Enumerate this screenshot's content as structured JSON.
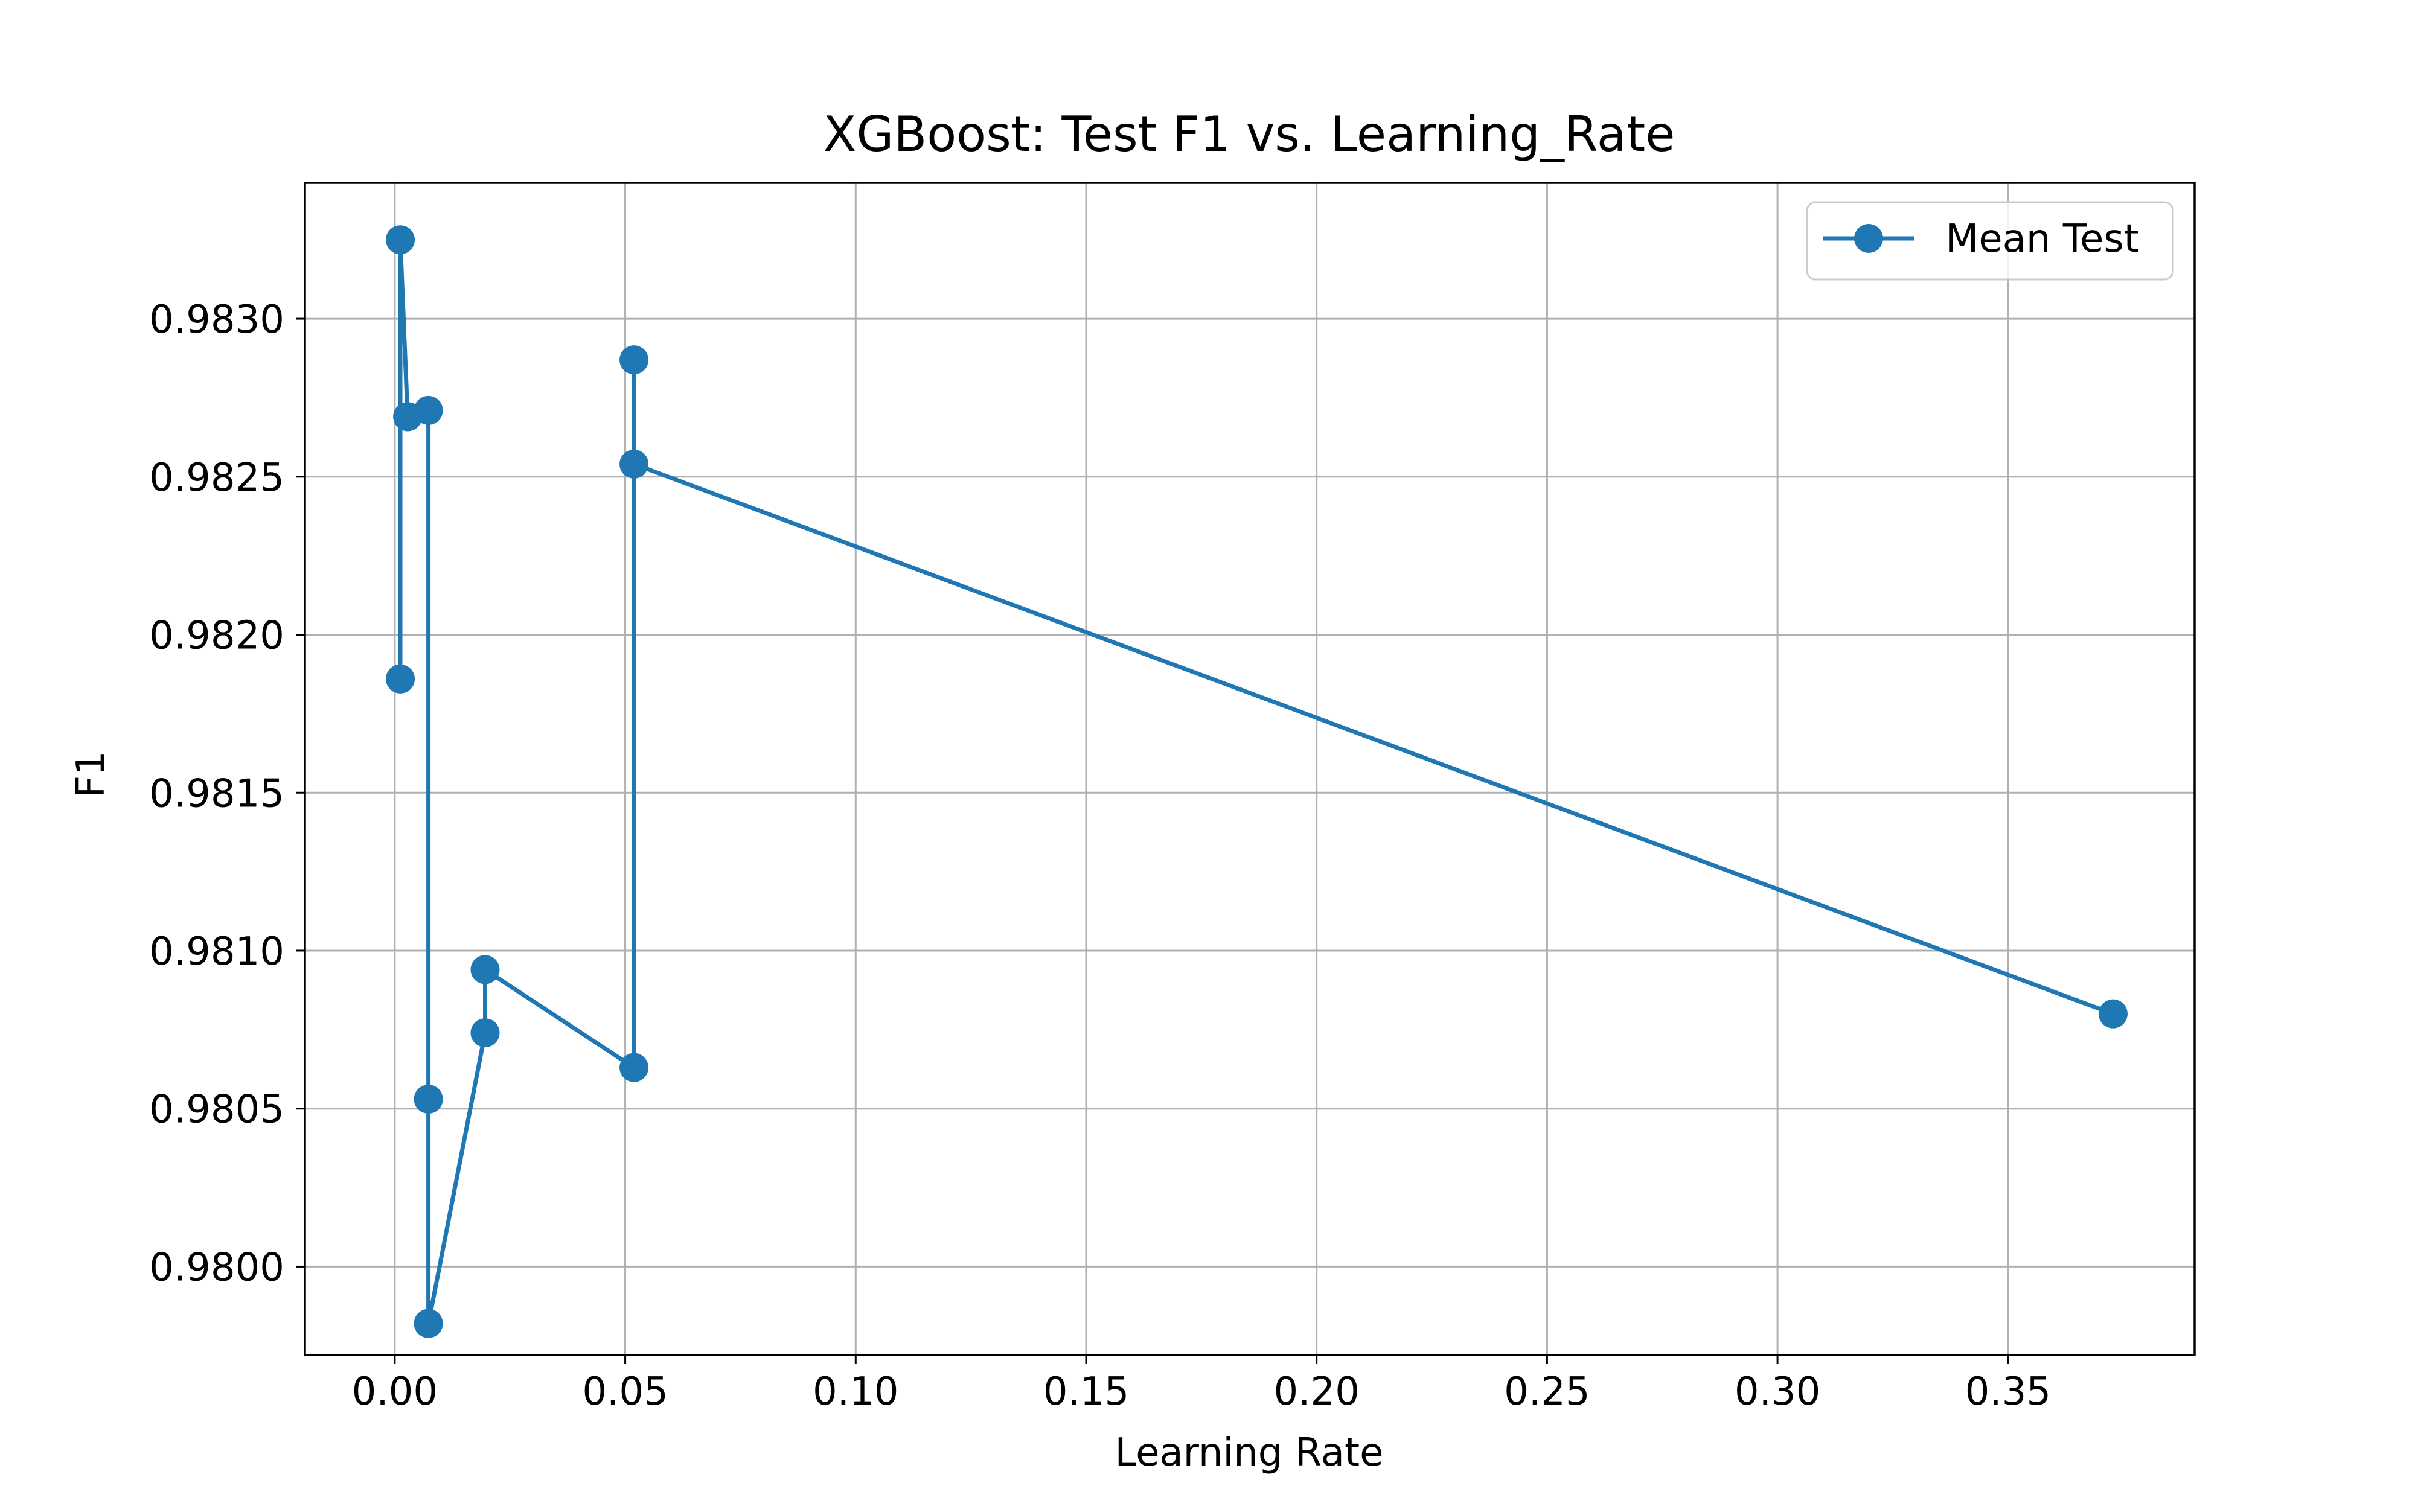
{
  "chart_data": {
    "type": "line",
    "title": "XGBoost: Test F1 vs. Learning_Rate",
    "xlabel": "Learning Rate",
    "ylabel": "F1",
    "xlim": [
      -0.0195,
      0.3905
    ],
    "ylim": [
      0.97972,
      0.98343
    ],
    "x_ticks": [
      0.0,
      0.05,
      0.1,
      0.15,
      0.2,
      0.25,
      0.3,
      0.35
    ],
    "x_tick_labels": [
      "0.00",
      "0.05",
      "0.10",
      "0.15",
      "0.20",
      "0.25",
      "0.30",
      "0.35"
    ],
    "y_ticks": [
      0.98,
      0.9805,
      0.981,
      0.9815,
      0.982,
      0.9825,
      0.983
    ],
    "y_tick_labels": [
      "0.9800",
      "0.9805",
      "0.9810",
      "0.9815",
      "0.9820",
      "0.9825",
      "0.9830"
    ],
    "grid": true,
    "legend_position": "top-right",
    "series": [
      {
        "name": "Mean Test",
        "color": "#1f77b4",
        "marker": "circle",
        "x": [
          0.0012,
          0.0012,
          0.0028,
          0.0028,
          0.0073,
          0.0073,
          0.0073,
          0.0196,
          0.0196,
          0.0519,
          0.0519,
          0.0519,
          0.3728
        ],
        "y": [
          0.98186,
          0.98325,
          0.98269,
          0.98269,
          0.98271,
          0.98053,
          0.97982,
          0.98074,
          0.98094,
          0.98063,
          0.98287,
          0.98254,
          0.9808
        ]
      }
    ]
  }
}
